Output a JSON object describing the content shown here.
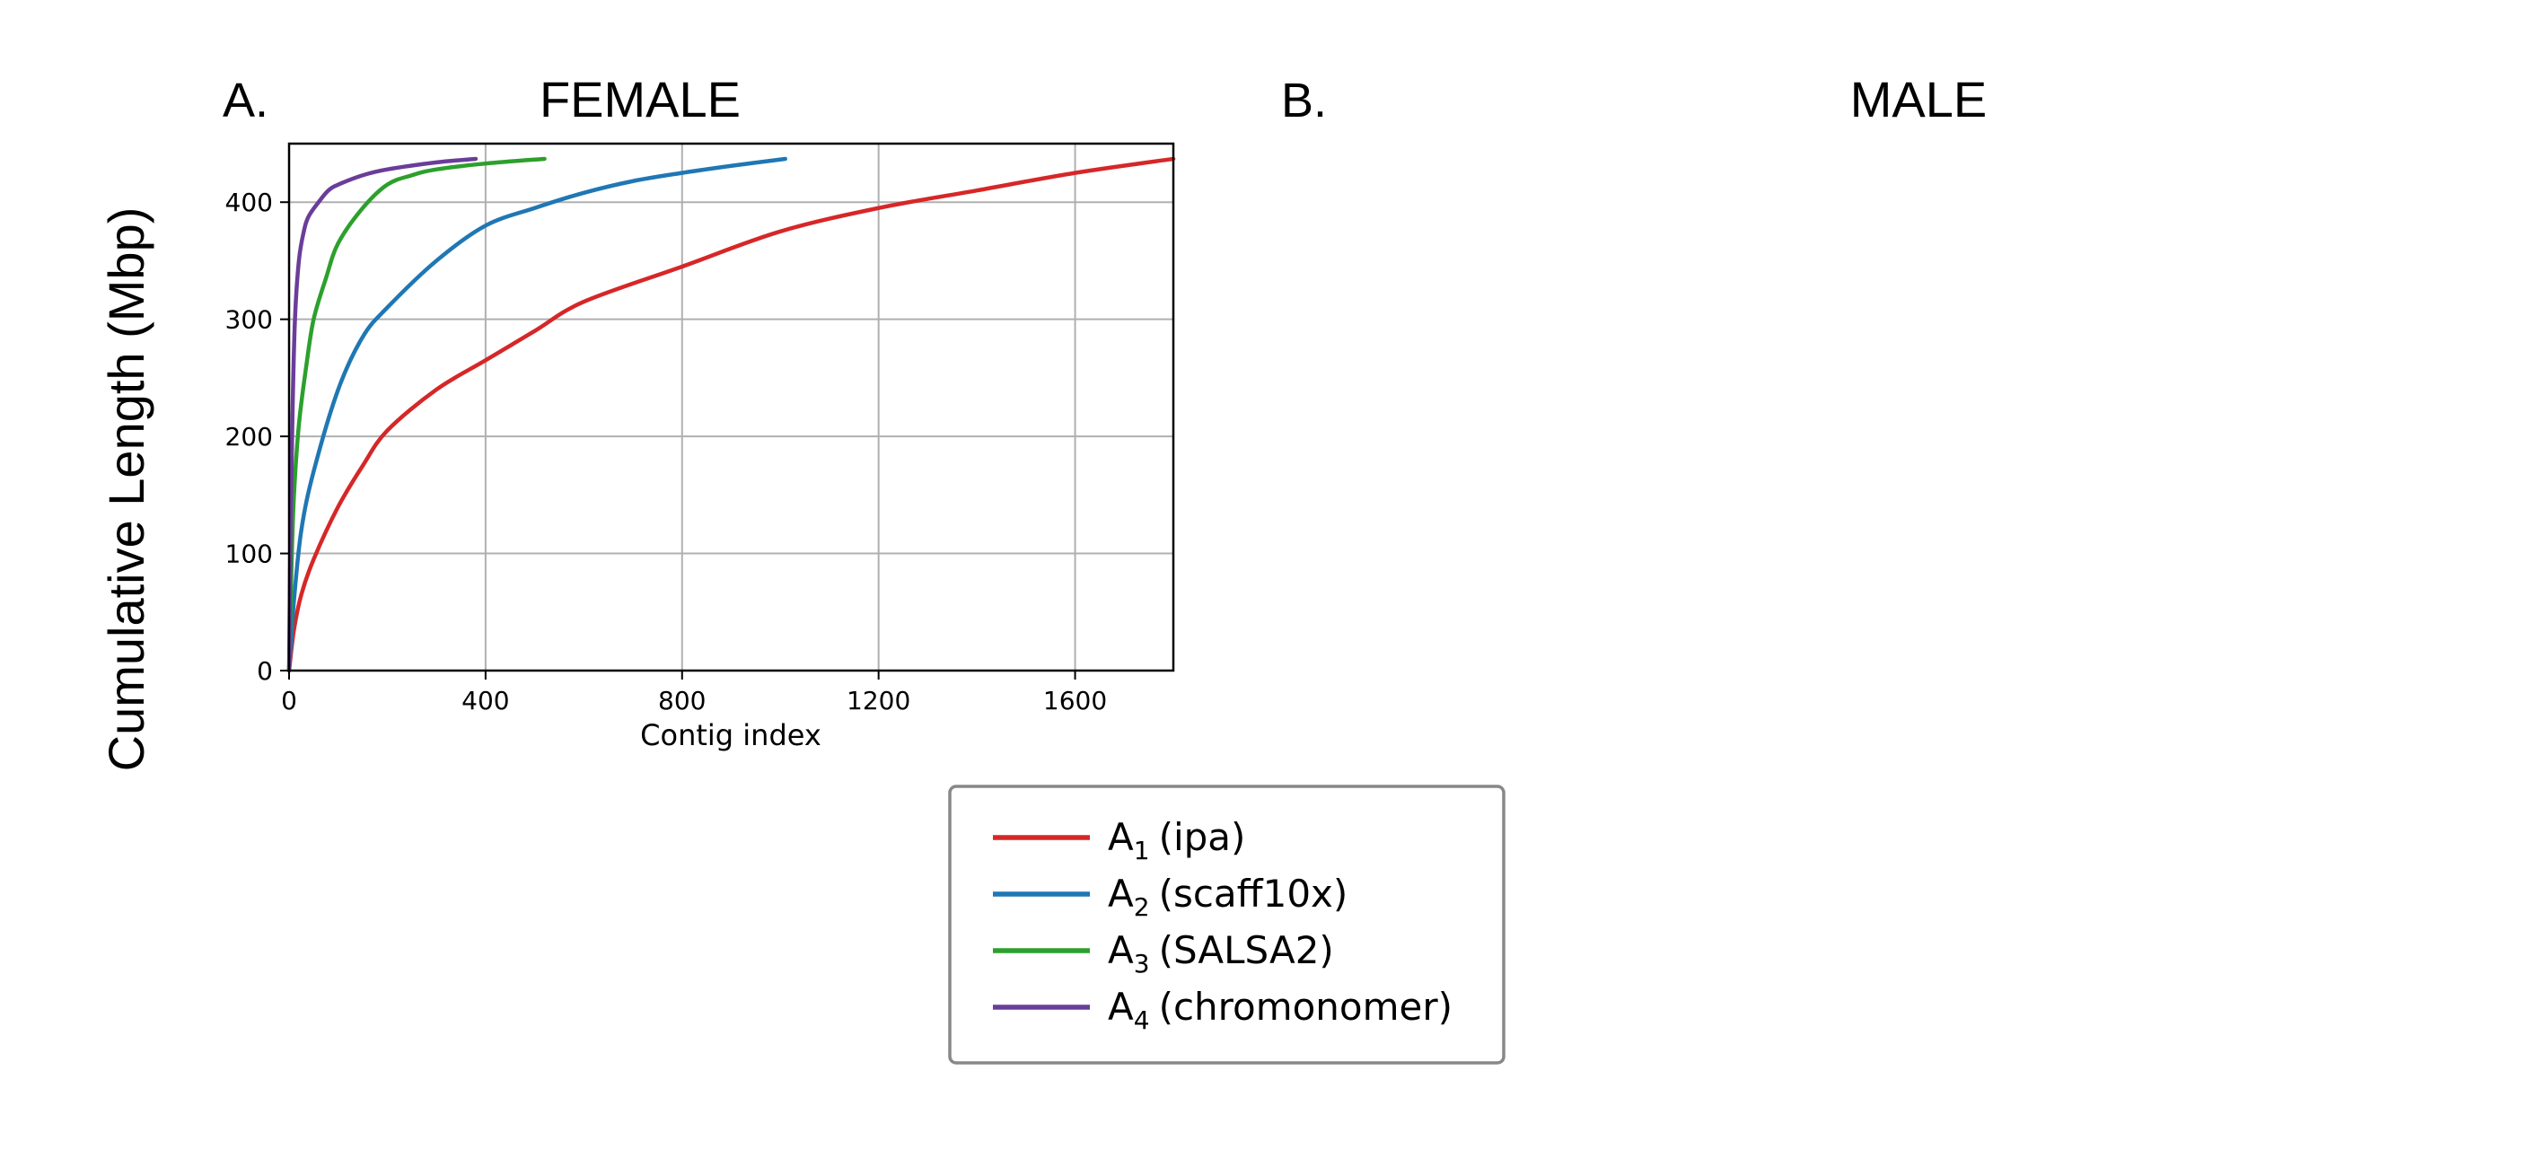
{
  "figure": {
    "y_label": "Cumulative Length (Mbp)"
  },
  "panels": [
    {
      "letter": "A.",
      "title": "FEMALE"
    },
    {
      "letter": "B.",
      "title": "MALE"
    }
  ],
  "chart_data": {
    "type": "line",
    "title": "FEMALE",
    "xlabel": "Contig index",
    "ylabel": "Cumulative Length (Mbp)",
    "xlim": [
      0,
      1800
    ],
    "ylim": [
      0,
      450
    ],
    "xticks": [
      0,
      400,
      800,
      1200,
      1600
    ],
    "yticks": [
      0,
      100,
      200,
      300,
      400
    ],
    "grid": true,
    "legend_position": "bottom",
    "series": [
      {
        "name": "A1 (ipa)",
        "label_main": "A",
        "label_sub": "1",
        "label_rest": "(ipa)",
        "color": "#d62728",
        "x": [
          0,
          10,
          25,
          50,
          100,
          150,
          200,
          300,
          400,
          500,
          600,
          800,
          1000,
          1200,
          1400,
          1600,
          1800
        ],
        "y": [
          0,
          35,
          65,
          95,
          140,
          175,
          205,
          240,
          265,
          290,
          315,
          345,
          375,
          395,
          410,
          425,
          437
        ]
      },
      {
        "name": "A2 (scaff10x)",
        "label_main": "A",
        "label_sub": "2",
        "label_rest": "(scaff10x)",
        "color": "#1f77b4",
        "x": [
          0,
          10,
          25,
          50,
          100,
          150,
          200,
          300,
          400,
          500,
          600,
          700,
          800,
          900,
          1010
        ],
        "y": [
          0,
          60,
          120,
          170,
          240,
          285,
          310,
          350,
          380,
          395,
          408,
          418,
          425,
          431,
          437
        ]
      },
      {
        "name": "A3 (SALSA2)",
        "label_main": "A",
        "label_sub": "3",
        "label_rest": "(SALSA2)",
        "color": "#2ca02c",
        "x": [
          0,
          5,
          10,
          20,
          35,
          50,
          75,
          100,
          150,
          200,
          250,
          300,
          400,
          520
        ],
        "y": [
          0,
          90,
          150,
          210,
          260,
          300,
          335,
          365,
          395,
          415,
          423,
          428,
          433,
          437
        ]
      },
      {
        "name": "A4 (chromonomer)",
        "label_main": "A",
        "label_sub": "4",
        "label_rest": "(chromonomer)",
        "color": "#6a3d9a",
        "x": [
          0,
          3,
          7,
          12,
          20,
          30,
          40,
          60,
          80,
          100,
          150,
          200,
          300,
          380
        ],
        "y": [
          0,
          120,
          220,
          300,
          350,
          375,
          388,
          400,
          410,
          415,
          423,
          428,
          434,
          437
        ]
      }
    ]
  }
}
